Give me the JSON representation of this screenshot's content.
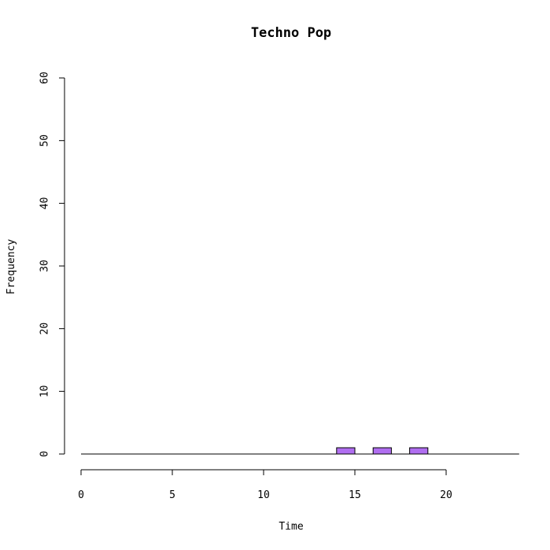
{
  "chart_data": {
    "type": "bar",
    "title": "Techno Pop",
    "xlabel": "Time",
    "ylabel": "Frequency",
    "xlim": [
      0,
      24
    ],
    "ylim": [
      0,
      60
    ],
    "x_ticks": [
      "0",
      "5",
      "10",
      "15",
      "20"
    ],
    "y_ticks": [
      "0",
      "10",
      "20",
      "30",
      "40",
      "50",
      "60"
    ],
    "bin_width": 1,
    "bins": [
      {
        "start": 0,
        "end": 1,
        "value": 0
      },
      {
        "start": 1,
        "end": 2,
        "value": 0
      },
      {
        "start": 2,
        "end": 3,
        "value": 0
      },
      {
        "start": 3,
        "end": 4,
        "value": 0
      },
      {
        "start": 4,
        "end": 5,
        "value": 0
      },
      {
        "start": 5,
        "end": 6,
        "value": 0
      },
      {
        "start": 6,
        "end": 7,
        "value": 0
      },
      {
        "start": 7,
        "end": 8,
        "value": 0
      },
      {
        "start": 8,
        "end": 9,
        "value": 0
      },
      {
        "start": 9,
        "end": 10,
        "value": 0
      },
      {
        "start": 10,
        "end": 11,
        "value": 0
      },
      {
        "start": 11,
        "end": 12,
        "value": 0
      },
      {
        "start": 12,
        "end": 13,
        "value": 0
      },
      {
        "start": 13,
        "end": 14,
        "value": 0
      },
      {
        "start": 14,
        "end": 15,
        "value": 1
      },
      {
        "start": 15,
        "end": 16,
        "value": 0
      },
      {
        "start": 16,
        "end": 17,
        "value": 1
      },
      {
        "start": 17,
        "end": 18,
        "value": 0
      },
      {
        "start": 18,
        "end": 19,
        "value": 1
      },
      {
        "start": 19,
        "end": 20,
        "value": 0
      },
      {
        "start": 20,
        "end": 21,
        "value": 0
      },
      {
        "start": 21,
        "end": 22,
        "value": 0
      },
      {
        "start": 22,
        "end": 23,
        "value": 0
      },
      {
        "start": 23,
        "end": 24,
        "value": 0
      }
    ],
    "bar_color": "#b06ef0",
    "grid": false,
    "legend": "none"
  }
}
